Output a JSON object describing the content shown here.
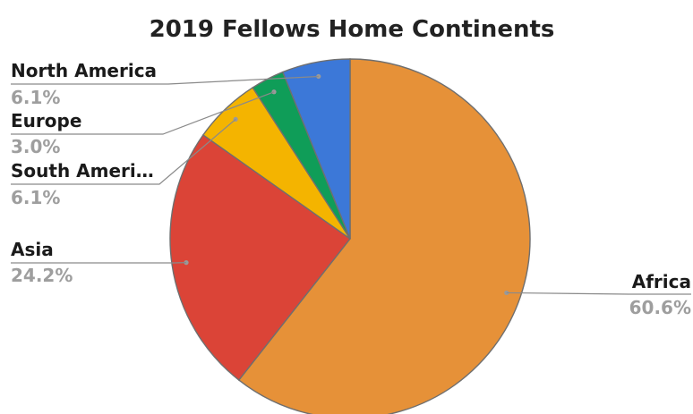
{
  "chart_data": {
    "type": "pie",
    "title": "2019 Fellows Home Continents",
    "slices": [
      {
        "label": "Africa",
        "value": 60.6,
        "percent_label": "60.6%",
        "color": "#E69138"
      },
      {
        "label": "Asia",
        "value": 24.2,
        "percent_label": "24.2%",
        "color": "#DB4437"
      },
      {
        "label": "South Ameri…",
        "value": 6.1,
        "percent_label": "6.1%",
        "color": "#F4B400"
      },
      {
        "label": "Europe",
        "value": 3.0,
        "percent_label": "3.0%",
        "color": "#0F9D58"
      },
      {
        "label": "North America",
        "value": 6.1,
        "percent_label": "6.1%",
        "color": "#3C78D8"
      }
    ],
    "start_angle_deg": 0,
    "direction": "clockwise",
    "label_style": "outside with leader lines, name above percentage"
  }
}
